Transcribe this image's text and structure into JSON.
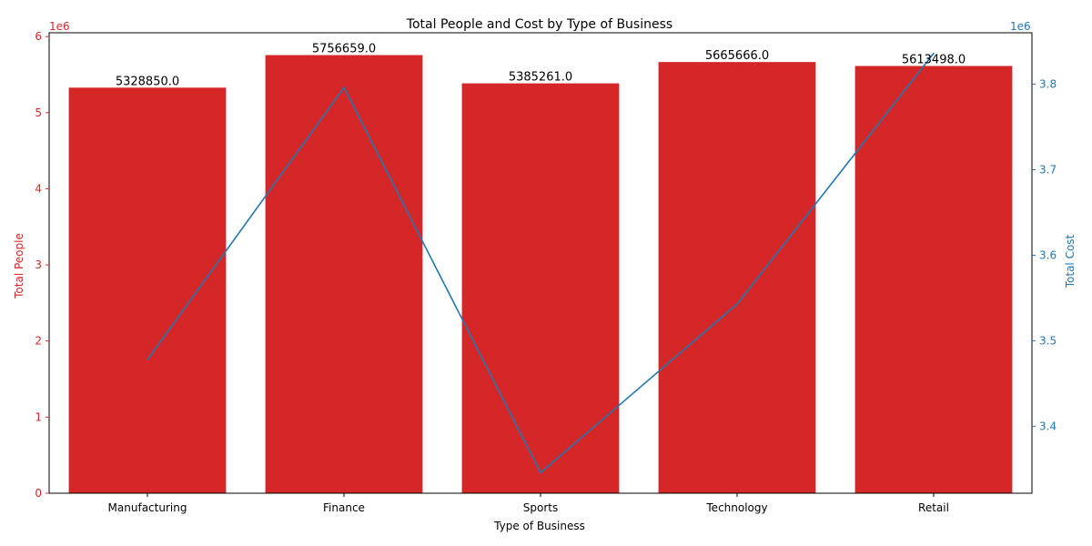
{
  "chart_data": {
    "type": "bar",
    "title": "Total People and Cost by Type of Business",
    "xlabel": "Type of Business",
    "ylabel": "Total People",
    "y2label": "Total Cost",
    "categories": [
      "Manufacturing",
      "Finance",
      "Sports",
      "Technology",
      "Retail"
    ],
    "series": [
      {
        "type": "bar",
        "axis": "left",
        "color": "#d62728",
        "values": [
          5328850,
          5756659,
          5385261,
          5665666,
          5613498
        ],
        "labels": [
          "5328850.0",
          "5756659.0",
          "5385261.0",
          "5665666.0",
          "5613498.0"
        ]
      },
      {
        "type": "line",
        "axis": "right",
        "color": "#1f77b4",
        "values": [
          3478000,
          3796000,
          3346000,
          3543000,
          3836000
        ]
      }
    ],
    "ylim": [
      0,
      6050000
    ],
    "y2lim": [
      3322000,
      3860000
    ],
    "yticks": [
      0,
      1,
      2,
      3,
      4,
      5,
      6
    ],
    "y2ticks": [
      3.4,
      3.5,
      3.6,
      3.7,
      3.8
    ],
    "y_scale_label": "1e6",
    "y2_scale_label": "1e6",
    "left_axis_color": "#d62728",
    "right_axis_color": "#1f77b4",
    "grid": false,
    "legend": "none"
  }
}
